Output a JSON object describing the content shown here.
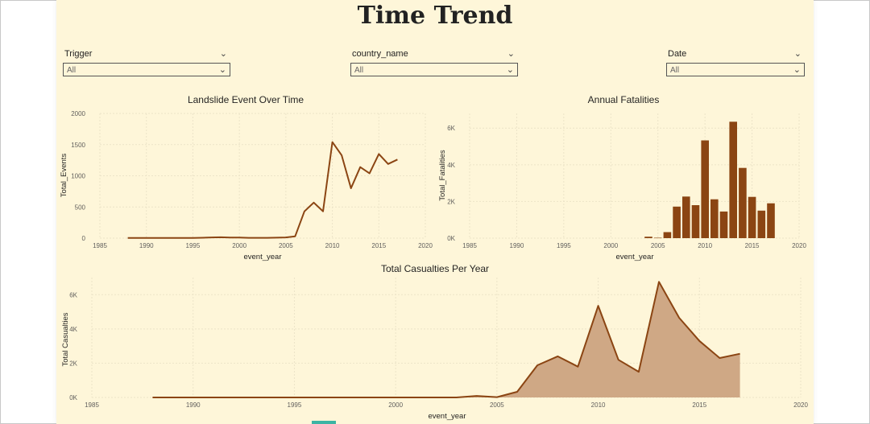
{
  "page": {
    "title": "Time Trend"
  },
  "slicers": [
    {
      "label": "Trigger",
      "value": "All"
    },
    {
      "label": "country_name",
      "value": "All"
    },
    {
      "label": "Date",
      "value": "All"
    }
  ],
  "colors": {
    "background": "#fef6d9",
    "series": "#8b4513",
    "area_fill": "#cfa885"
  },
  "chart_data": [
    {
      "id": "events",
      "type": "line",
      "title": "Landslide Event Over Time",
      "xlabel": "event_year",
      "ylabel": "Total_Events",
      "xlim": [
        1985,
        2020
      ],
      "ylim": [
        0,
        2000
      ],
      "xticks": [
        1985,
        1990,
        1995,
        2000,
        2005,
        2010,
        2015,
        2020
      ],
      "yticks": [
        0,
        500,
        1000,
        1500,
        2000
      ],
      "ytick_labels": [
        "0",
        "500",
        "1000",
        "1500",
        "2000"
      ],
      "x": [
        1988,
        1989,
        1990,
        1991,
        1992,
        1993,
        1994,
        1995,
        1996,
        1997,
        1998,
        1999,
        2000,
        2001,
        2002,
        2003,
        2004,
        2005,
        2006,
        2007,
        2008,
        2009,
        2010,
        2011,
        2012,
        2013,
        2014,
        2015,
        2016,
        2017
      ],
      "y": [
        2,
        2,
        3,
        3,
        2,
        3,
        3,
        4,
        6,
        12,
        14,
        9,
        9,
        5,
        5,
        5,
        8,
        12,
        30,
        430,
        570,
        430,
        1540,
        1330,
        800,
        1140,
        1040,
        1350,
        1190,
        1260
      ],
      "grid": true
    },
    {
      "id": "fatalities",
      "type": "bar",
      "title": "Annual Fatalities",
      "xlabel": "event_year",
      "ylabel": "Total_Fatalities",
      "xlim": [
        1985,
        2020
      ],
      "ylim": [
        0,
        6800
      ],
      "xticks": [
        1985,
        1990,
        1995,
        2000,
        2005,
        2010,
        2015,
        2020
      ],
      "yticks": [
        0,
        2000,
        4000,
        6000
      ],
      "ytick_labels": [
        "0K",
        "2K",
        "4K",
        "6K"
      ],
      "x": [
        2004,
        2005,
        2006,
        2007,
        2008,
        2009,
        2010,
        2011,
        2012,
        2013,
        2014,
        2015,
        2016,
        2017
      ],
      "y": [
        80,
        20,
        330,
        1720,
        2270,
        1800,
        5330,
        2120,
        1450,
        6350,
        3830,
        2250,
        1500,
        1900
      ],
      "grid": true
    },
    {
      "id": "casualties",
      "type": "area",
      "title": "Total Casualties Per Year",
      "xlabel": "event_year",
      "ylabel": "Total Casualties",
      "xlim": [
        1985,
        2020
      ],
      "ylim": [
        0,
        7000
      ],
      "xticks": [
        1985,
        1990,
        1995,
        2000,
        2005,
        2010,
        2015,
        2020
      ],
      "yticks": [
        0,
        2000,
        4000,
        6000
      ],
      "ytick_labels": [
        "0K",
        "2K",
        "4K",
        "6K"
      ],
      "x": [
        1988,
        1989,
        1990,
        1991,
        1992,
        1993,
        1994,
        1995,
        1996,
        1997,
        1998,
        1999,
        2000,
        2001,
        2002,
        2003,
        2004,
        2005,
        2006,
        2007,
        2008,
        2009,
        2010,
        2011,
        2012,
        2013,
        2014,
        2015,
        2016,
        2017
      ],
      "y": [
        0,
        0,
        0,
        0,
        0,
        0,
        0,
        0,
        0,
        0,
        0,
        0,
        0,
        0,
        0,
        0,
        90,
        20,
        330,
        1880,
        2400,
        1800,
        5350,
        2200,
        1500,
        6750,
        4650,
        3300,
        2300,
        2550
      ],
      "grid": true
    }
  ]
}
